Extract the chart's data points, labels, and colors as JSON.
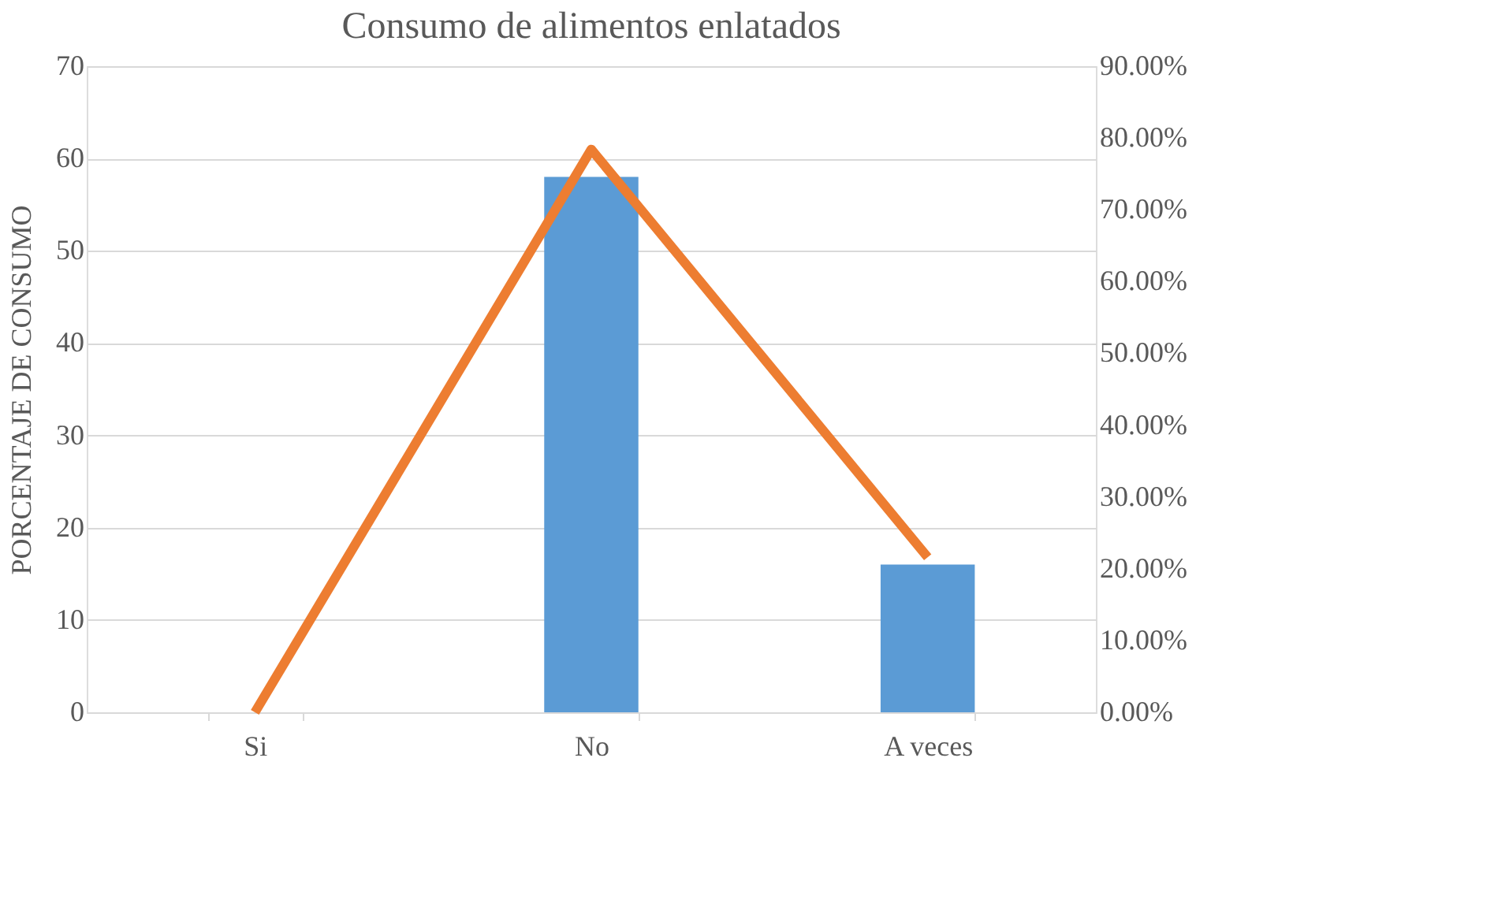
{
  "chart_data": {
    "type": "bar",
    "title": "Consumo de alimentos enlatados",
    "ylabel": "PORCENTAJE DE CONSUMO",
    "categories": [
      "Si",
      "No",
      "A veces"
    ],
    "series": [
      {
        "color": "#5b9bd5",
        "values": [
          0,
          58,
          16
        ]
      },
      {
        "type": "line",
        "axis": "y2",
        "color": "#ed7d31",
        "values": [
          0,
          78.4,
          21.6
        ],
        "marker": "none",
        "line_style": "solid"
      }
    ],
    "ylim": [
      0,
      70
    ],
    "yticks": [
      0,
      10,
      20,
      30,
      40,
      50,
      60,
      70
    ],
    "y2lim": [
      0,
      90
    ],
    "y2ticks": [
      {
        "value": 0,
        "label": "0.00%"
      },
      {
        "value": 10,
        "label": "10.00%"
      },
      {
        "value": 20,
        "label": "20.00%"
      },
      {
        "value": 30,
        "label": "30.00%"
      },
      {
        "value": 40,
        "label": "40.00%"
      },
      {
        "value": 50,
        "label": "50.00%"
      },
      {
        "value": 60,
        "label": "60.00%"
      },
      {
        "value": 70,
        "label": "70.00%"
      },
      {
        "value": 80,
        "label": "80.00%"
      },
      {
        "value": 90,
        "label": "90.00%"
      }
    ],
    "grid": "y"
  }
}
